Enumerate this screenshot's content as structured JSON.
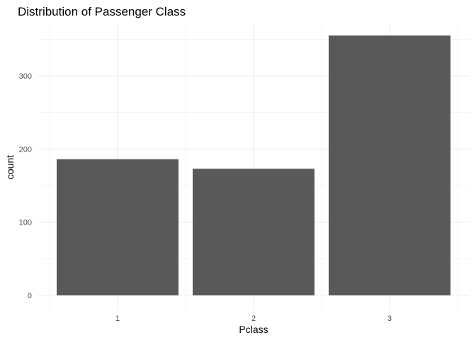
{
  "chart_data": {
    "type": "bar",
    "title": "Distribution of Passenger Class",
    "xlabel": "Pclass",
    "ylabel": "count",
    "categories": [
      "1",
      "2",
      "3"
    ],
    "values": [
      186,
      173,
      355
    ],
    "ylim": [
      0,
      370
    ],
    "yticks": [
      0,
      100,
      200,
      300
    ],
    "grid": true,
    "bar_color": "#595959",
    "grid_color": "#ebebeb"
  }
}
